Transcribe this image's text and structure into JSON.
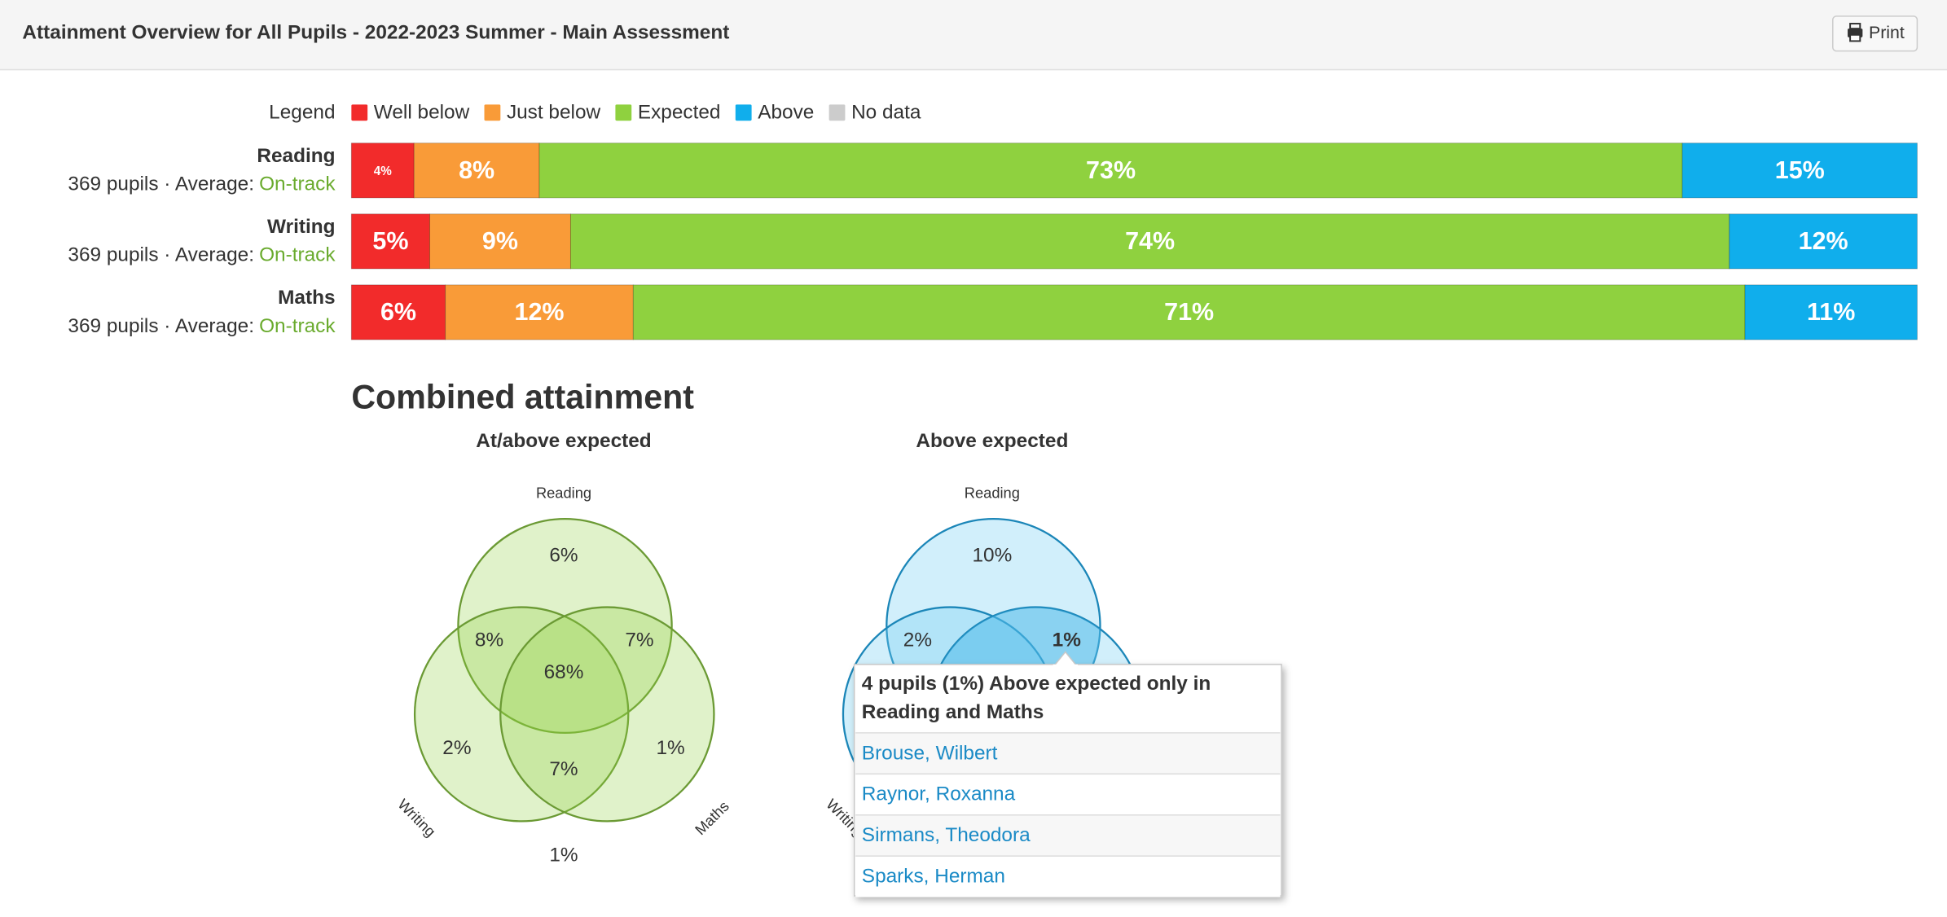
{
  "header": {
    "title": "Attainment Overview for All Pupils - 2022-2023 Summer - Main Assessment",
    "print_button": "Print"
  },
  "legend": {
    "title": "Legend",
    "items": [
      {
        "label": "Well below",
        "color": "#f22b2b"
      },
      {
        "label": "Just below",
        "color": "#f99b38"
      },
      {
        "label": "Expected",
        "color": "#8fd13f"
      },
      {
        "label": "Above",
        "color": "#10aeec"
      },
      {
        "label": "No data",
        "color": "#cccccc"
      }
    ]
  },
  "subjects": [
    {
      "name": "Reading",
      "pupils": "369 pupils · Average:",
      "average": "On-track",
      "values": [
        4,
        8,
        73,
        15
      ],
      "value_labels": [
        "4%",
        "8%",
        "73%",
        "15%"
      ]
    },
    {
      "name": "Writing",
      "pupils": "369 pupils · Average:",
      "average": "On-track",
      "values": [
        5,
        9,
        74,
        12
      ],
      "value_labels": [
        "5%",
        "9%",
        "74%",
        "12%"
      ]
    },
    {
      "name": "Maths",
      "pupils": "369 pupils · Average:",
      "average": "On-track",
      "values": [
        6,
        12,
        71,
        11
      ],
      "value_labels": [
        "6%",
        "12%",
        "71%",
        "11%"
      ]
    }
  ],
  "combined": {
    "title": "Combined attainment",
    "venns": [
      {
        "title": "At/above expected",
        "sets": [
          "Reading",
          "Writing",
          "Maths"
        ],
        "regions": [
          "6%",
          "8%",
          "7%",
          "68%",
          "2%",
          "1%",
          "7%",
          "1%"
        ]
      },
      {
        "title": "Above expected",
        "sets": [
          "Reading",
          "Writing"
        ],
        "regions": [
          "10%",
          "2%",
          "1%"
        ]
      }
    ]
  },
  "tooltip": {
    "title_lines": [
      "4 pupils (1%) Above expected only in",
      "Reading and Maths"
    ],
    "pupils": [
      "Brouse, Wilbert",
      "Raynor, Roxanna",
      "Sirmans, Theodora",
      "Sparks, Herman"
    ]
  }
}
